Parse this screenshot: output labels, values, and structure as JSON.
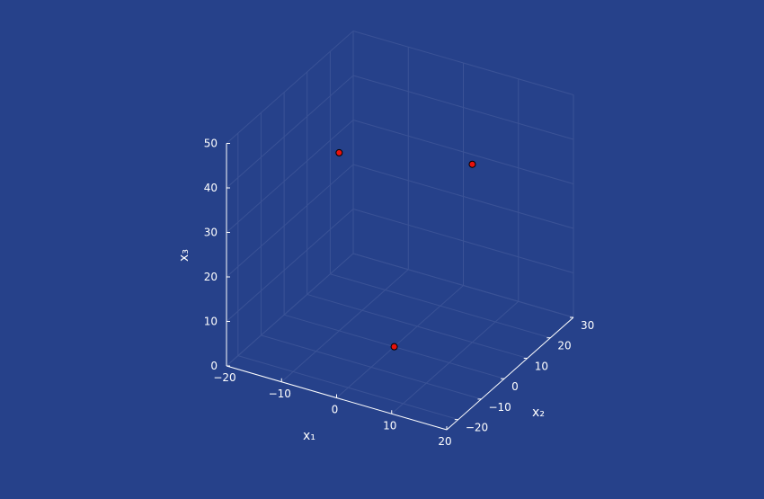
{
  "colors": {
    "background": "#26418a",
    "axis": "#ffffff",
    "grid": "#3a5296",
    "marker_fill": "#e8120c",
    "marker_stroke": "#000000"
  },
  "chart_data": {
    "type": "scatter",
    "dimensions": 3,
    "title": "",
    "xlabel": "x₁",
    "ylabel": "x₂",
    "zlabel": "x₃",
    "xlim": [
      -20,
      20
    ],
    "ylim": [
      -25,
      30
    ],
    "zlim": [
      0,
      50
    ],
    "x_ticks": [
      "−20",
      "−10",
      "0",
      "10",
      "20"
    ],
    "y_ticks": [
      "−20",
      "−10",
      "0",
      "10",
      "20",
      "30"
    ],
    "z_ticks": [
      "0",
      "10",
      "20",
      "30",
      "40",
      "50"
    ],
    "grid": true,
    "legend": "none",
    "points": [
      {
        "x": -10,
        "y": 0,
        "z": 40
      },
      {
        "x": 0,
        "y": 0,
        "z": 0
      },
      {
        "x": 10,
        "y": 10,
        "z": 40
      }
    ]
  }
}
